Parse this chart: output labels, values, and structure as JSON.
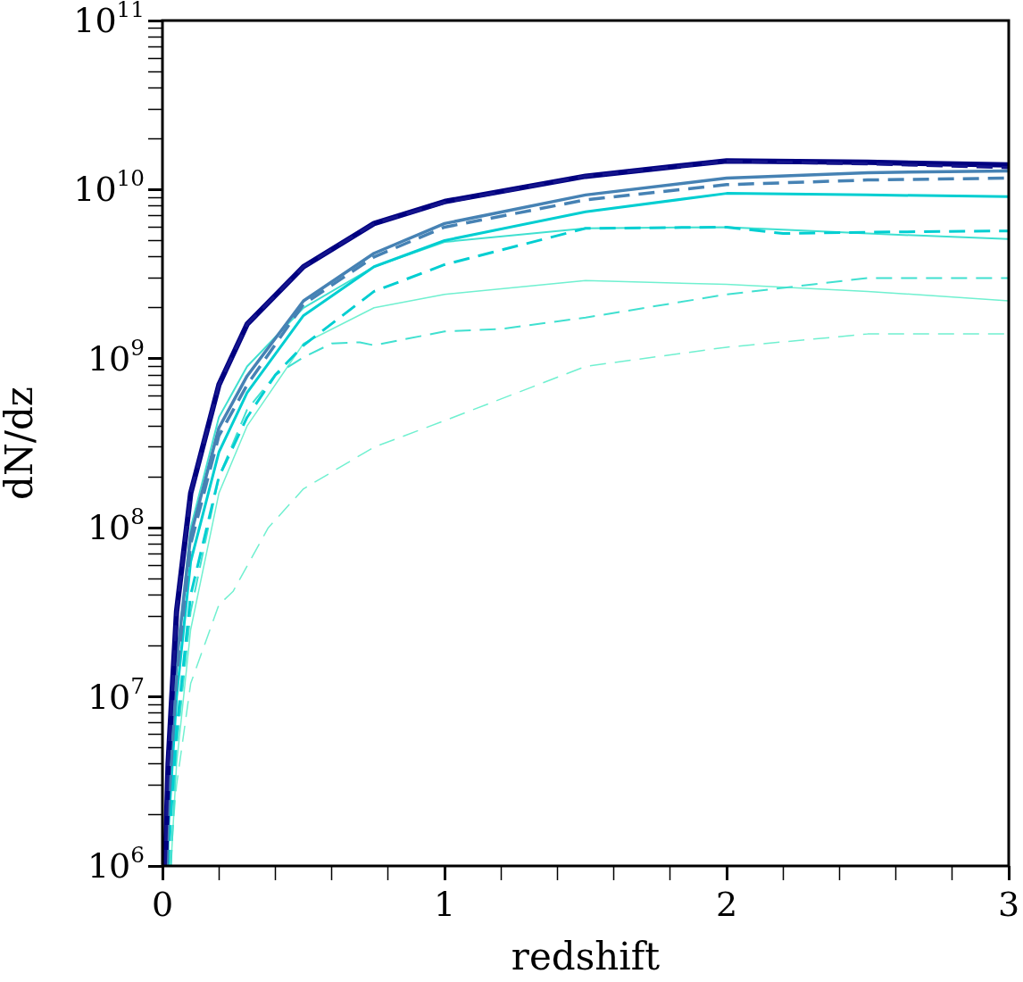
{
  "chart_data": {
    "type": "line",
    "xlabel": "redshift",
    "ylabel": "dN/dz",
    "log": "y",
    "grid": false,
    "legend": false,
    "marker": "none",
    "xlim": [
      0,
      3
    ],
    "ylim": [
      1000000,
      100000000000
    ],
    "xticks": [
      0,
      {
        "value": 0.2,
        "label": null
      },
      {
        "value": 0.4,
        "label": null
      },
      {
        "value": 0.6,
        "label": null
      },
      {
        "value": 0.8,
        "label": null
      },
      1,
      {
        "value": 1.2,
        "label": null
      },
      {
        "value": 1.4,
        "label": null
      },
      {
        "value": 1.6,
        "label": null
      },
      {
        "value": 1.8,
        "label": null
      },
      2,
      {
        "value": 2.2,
        "label": null
      },
      {
        "value": 2.4,
        "label": null
      },
      {
        "value": 2.6,
        "label": null
      },
      {
        "value": 2.8,
        "label": null
      },
      3
    ],
    "yticks": [
      {
        "value": 1000000,
        "label": "10$^{6}$"
      },
      {
        "value": 2000000,
        "label": null
      },
      {
        "value": 3000000,
        "label": null
      },
      {
        "value": 4000000,
        "label": null
      },
      {
        "value": 5000000,
        "label": null
      },
      {
        "value": 6000000,
        "label": null
      },
      {
        "value": 7000000,
        "label": null
      },
      {
        "value": 8000000,
        "label": null
      },
      {
        "value": 9000000,
        "label": null
      },
      {
        "value": 10000000,
        "label": "10$^{7}$"
      },
      {
        "value": 20000000,
        "label": null
      },
      {
        "value": 30000000,
        "label": null
      },
      {
        "value": 40000000,
        "label": null
      },
      {
        "value": 50000000,
        "label": null
      },
      {
        "value": 60000000,
        "label": null
      },
      {
        "value": 70000000,
        "label": null
      },
      {
        "value": 80000000,
        "label": null
      },
      {
        "value": 90000000,
        "label": null
      },
      {
        "value": 100000000,
        "label": "10$^{8}$"
      },
      {
        "value": 200000000,
        "label": null
      },
      {
        "value": 300000000,
        "label": null
      },
      {
        "value": 400000000,
        "label": null
      },
      {
        "value": 500000000,
        "label": null
      },
      {
        "value": 600000000,
        "label": null
      },
      {
        "value": 700000000,
        "label": null
      },
      {
        "value": 800000000,
        "label": null
      },
      {
        "value": 900000000,
        "label": null
      },
      {
        "value": 1000000000,
        "label": "10$^{9}$"
      },
      {
        "value": 2000000000,
        "label": null
      },
      {
        "value": 3000000000,
        "label": null
      },
      {
        "value": 4000000000,
        "label": null
      },
      {
        "value": 5000000000,
        "label": null
      },
      {
        "value": 6000000000,
        "label": null
      },
      {
        "value": 7000000000,
        "label": null
      },
      {
        "value": 8000000000,
        "label": null
      },
      {
        "value": 9000000000,
        "label": null
      },
      {
        "value": 10000000000,
        "label": "10$^{10}$"
      },
      {
        "value": 20000000000,
        "label": null
      },
      {
        "value": 30000000000,
        "label": null
      },
      {
        "value": 40000000000,
        "label": null
      },
      {
        "value": 50000000000,
        "label": null
      },
      {
        "value": 60000000000,
        "label": null
      },
      {
        "value": 70000000000,
        "label": null
      },
      {
        "value": 80000000000,
        "label": null
      },
      {
        "value": 90000000000,
        "label": null
      },
      {
        "value": 100000000000,
        "label": "10$^{11}$"
      }
    ],
    "series": [
      {
        "color": "#000080",
        "line_style": "solid",
        "x": [
          0.01,
          0.02,
          0.05,
          0.1,
          0.2,
          0.3,
          0.5,
          0.75,
          1,
          1.5,
          2,
          2.5,
          3
        ],
        "values": [
          1000000.0,
          4000000.0,
          32000000.0,
          160000000.0,
          700000000.0,
          1600000000.0,
          3500000000.0,
          6300000000.0,
          8500000000.0,
          12000000000.0,
          14800000000.0,
          14500000000.0,
          14000000000.0
        ]
      },
      {
        "color": "#14148c",
        "line_style": "dashed",
        "x": [
          0.01,
          0.02,
          0.05,
          0.1,
          0.2,
          0.3,
          0.5,
          0.75,
          1,
          1.5,
          2,
          2.5,
          3
        ],
        "values": [
          1000000.0,
          4000000.0,
          32000000.0,
          160000000.0,
          700000000.0,
          1600000000.0,
          3500000000.0,
          6300000000.0,
          8400000000.0,
          12000000000.0,
          14700000000.0,
          14200000000.0,
          13500000000.0
        ]
      },
      {
        "color": "#4682b4",
        "line_style": "solid",
        "x": [
          0.015,
          0.02,
          0.05,
          0.1,
          0.2,
          0.3,
          0.5,
          0.75,
          1,
          1.5,
          2,
          2.5,
          3
        ],
        "values": [
          1000000.0,
          2500000.0,
          16000000.0,
          90000000.0,
          390000000.0,
          790000000.0,
          2200000000.0,
          4200000000.0,
          6300000000.0,
          9300000000.0,
          11700000000.0,
          12600000000.0,
          12900000000.0
        ]
      },
      {
        "color": "#4682b4",
        "line_style": "dashed",
        "x": [
          0.016,
          0.02,
          0.05,
          0.1,
          0.2,
          0.3,
          0.5,
          0.75,
          1,
          1.5,
          2,
          2.5,
          3
        ],
        "values": [
          1000000.0,
          2000000.0,
          13000000.0,
          80000000.0,
          350000000.0,
          700000000.0,
          2100000000.0,
          4000000000.0,
          6000000000.0,
          8700000000.0,
          10700000000.0,
          11400000000.0,
          11700000000.0
        ]
      },
      {
        "color": "#00ced1",
        "line_style": "solid",
        "x": [
          0.018,
          0.02,
          0.05,
          0.1,
          0.2,
          0.3,
          0.5,
          0.75,
          1,
          1.5,
          2,
          2.5,
          3
        ],
        "values": [
          1000000.0,
          1600000.0,
          10000000.0,
          63000000.0,
          280000000.0,
          630000000.0,
          1800000000.0,
          3500000000.0,
          5000000000.0,
          7400000000.0,
          9500000000.0,
          9300000000.0,
          9100000000.0
        ]
      },
      {
        "color": "#00ced1",
        "line_style": "dashed",
        "x": [
          0.02,
          0.03,
          0.05,
          0.1,
          0.2,
          0.3,
          0.4,
          0.5,
          0.75,
          1,
          1.5,
          2,
          2.2,
          2.5,
          3
        ],
        "values": [
          1000000.0,
          2000000.0,
          6300000.0,
          40000000.0,
          200000000.0,
          450000000.0,
          800000000.0,
          1200000000.0,
          2500000000.0,
          3600000000.0,
          5900000000.0,
          6000000000.0,
          5500000000.0,
          5600000000.0,
          5700000000.0
        ]
      },
      {
        "color": "#40e0d0",
        "line_style": "solid",
        "x": [
          0.015,
          0.02,
          0.05,
          0.1,
          0.2,
          0.3,
          0.5,
          0.75,
          1,
          1.5,
          2,
          2.5,
          3
        ],
        "values": [
          1000000.0,
          2000000.0,
          16000000.0,
          100000000.0,
          450000000.0,
          900000000.0,
          2000000000.0,
          3500000000.0,
          4900000000.0,
          5900000000.0,
          6000000000.0,
          5500000000.0,
          5100000000.0
        ]
      },
      {
        "color": "#40e0d0",
        "line_style": "dashed",
        "x": [
          0.03,
          0.05,
          0.1,
          0.2,
          0.3,
          0.4,
          0.5,
          0.6,
          0.7,
          0.75,
          1,
          1.2,
          1.5,
          2,
          2.5,
          3
        ],
        "values": [
          1000000.0,
          5000000.0,
          32000000.0,
          200000000.0,
          500000000.0,
          800000000.0,
          1020000000.0,
          1230000000.0,
          1250000000.0,
          1200000000.0,
          1450000000.0,
          1500000000.0,
          1750000000.0,
          2400000000.0,
          3000000000.0,
          3000000000.0
        ]
      },
      {
        "color": "#70f0d0",
        "line_style": "solid",
        "x": [
          0.03,
          0.05,
          0.1,
          0.2,
          0.3,
          0.5,
          0.75,
          1,
          1.5,
          2,
          2.5,
          3
        ],
        "values": [
          1000000.0,
          4000000.0,
          25000000.0,
          160000000.0,
          400000000.0,
          1230000000.0,
          2000000000.0,
          2400000000.0,
          2900000000.0,
          2750000000.0,
          2500000000.0,
          2200000000.0
        ]
      },
      {
        "color": "#70f0d0",
        "line_style": "dashed",
        "x": [
          0.025,
          0.05,
          0.1,
          0.2,
          0.25,
          0.375,
          0.5,
          0.75,
          1,
          1.5,
          2,
          2.5,
          3
        ],
        "values": [
          1000000.0,
          3000000.0,
          12000000.0,
          35000000.0,
          42000000.0,
          100000000.0,
          170000000.0,
          300000000.0,
          430000000.0,
          900000000.0,
          1170000000.0,
          1400000000.0,
          1400000000.0
        ]
      }
    ]
  }
}
